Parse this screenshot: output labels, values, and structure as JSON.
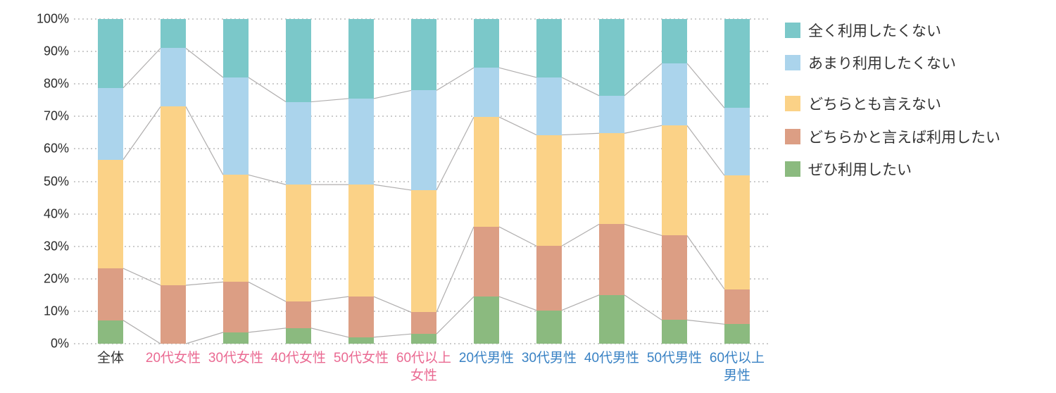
{
  "chart_data": {
    "type": "bar",
    "variant": "100%-stacked-column-with-connector-lines",
    "title": "",
    "xlabel": "",
    "ylabel": "",
    "ylim": [
      0,
      100
    ],
    "unit": "%",
    "grid": "horizontal-dotted",
    "legend_position": "right",
    "y_ticks": [
      {
        "label": "0%",
        "value": 0
      },
      {
        "label": "10%",
        "value": 10
      },
      {
        "label": "20%",
        "value": 20
      },
      {
        "label": "30%",
        "value": 30
      },
      {
        "label": "40%",
        "value": 40
      },
      {
        "label": "50%",
        "value": 50
      },
      {
        "label": "60%",
        "value": 60
      },
      {
        "label": "70%",
        "value": 70
      },
      {
        "label": "80%",
        "value": 80
      },
      {
        "label": "90%",
        "value": 90
      },
      {
        "label": "100%",
        "value": 100
      }
    ],
    "categories": [
      {
        "label": "全体",
        "label_lines": [
          "全体"
        ],
        "label_color": "#333333"
      },
      {
        "label": "20代女性",
        "label_lines": [
          "20代女性"
        ],
        "label_color": "#ea6a92"
      },
      {
        "label": "30代女性",
        "label_lines": [
          "30代女性"
        ],
        "label_color": "#ea6a92"
      },
      {
        "label": "40代女性",
        "label_lines": [
          "40代女性"
        ],
        "label_color": "#ea6a92"
      },
      {
        "label": "50代女性",
        "label_lines": [
          "50代女性"
        ],
        "label_color": "#ea6a92"
      },
      {
        "label": "60代以上女性",
        "label_lines": [
          "60代以上",
          "女性"
        ],
        "label_color": "#ea6a92"
      },
      {
        "label": "20代男性",
        "label_lines": [
          "20代男性"
        ],
        "label_color": "#3982c4"
      },
      {
        "label": "30代男性",
        "label_lines": [
          "30代男性"
        ],
        "label_color": "#3982c4"
      },
      {
        "label": "40代男性",
        "label_lines": [
          "40代男性"
        ],
        "label_color": "#3982c4"
      },
      {
        "label": "50代男性",
        "label_lines": [
          "50代男性"
        ],
        "label_color": "#3982c4"
      },
      {
        "label": "60代以上男性",
        "label_lines": [
          "60代以上",
          "男性"
        ],
        "label_color": "#3982c4"
      }
    ],
    "series_stack_order": "bottom-to-top",
    "series": [
      {
        "name": "ぜひ利用したい",
        "color": "#8bba7f",
        "values": [
          7.2,
          0.0,
          3.5,
          4.8,
          2.0,
          3.0,
          14.5,
          10.3,
          15.0,
          7.3,
          6.0
        ]
      },
      {
        "name": "どちらかと言えば利用したい",
        "color": "#dc9e84",
        "values": [
          16.0,
          18.0,
          15.5,
          8.2,
          12.5,
          6.7,
          21.5,
          19.8,
          21.8,
          26.0,
          10.8
        ]
      },
      {
        "name": "どちらとも言えない",
        "color": "#fbd287",
        "values": [
          33.5,
          55.0,
          33.0,
          36.0,
          34.5,
          37.6,
          33.8,
          34.2,
          28.0,
          33.9,
          35.0
        ]
      },
      {
        "name": "あまり利用したくない",
        "color": "#abd4ec",
        "values": [
          22.1,
          18.0,
          30.0,
          25.5,
          26.5,
          30.7,
          15.2,
          17.7,
          11.6,
          19.1,
          20.8
        ]
      },
      {
        "name": "全く利用したくない",
        "color": "#7bc8c9",
        "values": [
          21.2,
          9.0,
          18.0,
          25.5,
          24.5,
          22.0,
          15.0,
          18.0,
          23.6,
          13.7,
          27.4
        ]
      }
    ],
    "legend_top_to_bottom": [
      "全く利用したくない",
      "あまり利用したくない",
      "どちらとも言えない",
      "どちらかと言えば利用したい",
      "ぜひ利用したい"
    ],
    "connector_line_color": "#b0aeae",
    "gridline_color": "#cccccc"
  }
}
